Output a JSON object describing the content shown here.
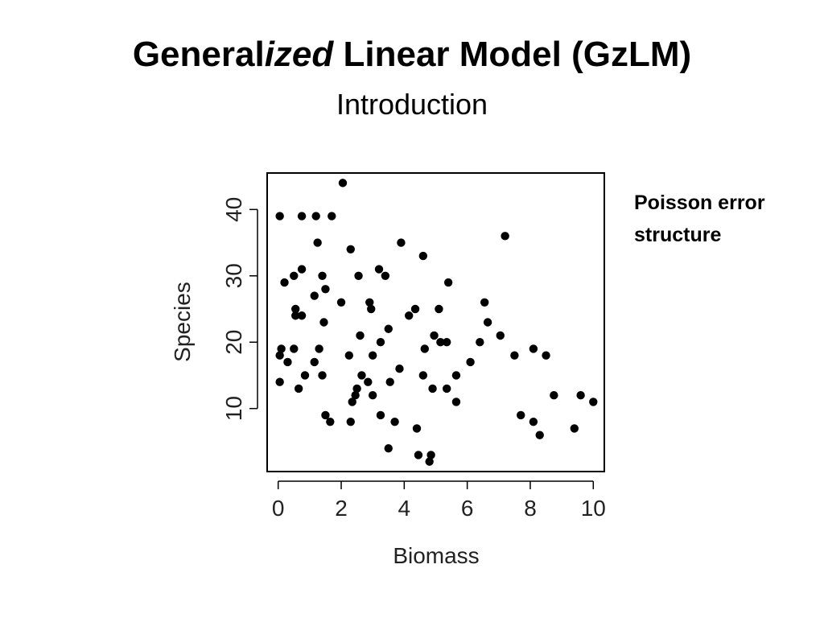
{
  "slide": {
    "title_part1": "General",
    "title_italic": "ized",
    "title_part2": " Linear Model (GzLM)",
    "subtitle": "Introduction",
    "note": "Poisson error structure"
  },
  "chart_data": {
    "type": "scatter",
    "title": "",
    "xlabel": "Biomass",
    "ylabel": "Species",
    "xlim": [
      -0.35,
      10.35
    ],
    "ylim": [
      0.5,
      45.5
    ],
    "xticks": [
      0,
      2,
      4,
      6,
      8,
      10
    ],
    "yticks": [
      10,
      20,
      30,
      40
    ],
    "grid": false,
    "legend": "none",
    "point_color": "#000000",
    "points": [
      {
        "x": 2.05,
        "y": 44
      },
      {
        "x": 0.05,
        "y": 39
      },
      {
        "x": 0.75,
        "y": 39
      },
      {
        "x": 1.2,
        "y": 39
      },
      {
        "x": 1.7,
        "y": 39
      },
      {
        "x": 7.2,
        "y": 36
      },
      {
        "x": 1.25,
        "y": 35
      },
      {
        "x": 3.9,
        "y": 35
      },
      {
        "x": 2.3,
        "y": 34
      },
      {
        "x": 4.6,
        "y": 33
      },
      {
        "x": 0.75,
        "y": 31
      },
      {
        "x": 3.2,
        "y": 31
      },
      {
        "x": 0.5,
        "y": 30
      },
      {
        "x": 1.4,
        "y": 30
      },
      {
        "x": 2.55,
        "y": 30
      },
      {
        "x": 3.4,
        "y": 30
      },
      {
        "x": 0.2,
        "y": 29
      },
      {
        "x": 5.4,
        "y": 29
      },
      {
        "x": 1.5,
        "y": 28
      },
      {
        "x": 1.15,
        "y": 27
      },
      {
        "x": 2.0,
        "y": 26
      },
      {
        "x": 2.9,
        "y": 26
      },
      {
        "x": 6.55,
        "y": 26
      },
      {
        "x": 0.55,
        "y": 25
      },
      {
        "x": 2.95,
        "y": 25
      },
      {
        "x": 4.35,
        "y": 25
      },
      {
        "x": 5.1,
        "y": 25
      },
      {
        "x": 0.55,
        "y": 24
      },
      {
        "x": 0.75,
        "y": 24
      },
      {
        "x": 4.15,
        "y": 24
      },
      {
        "x": 1.45,
        "y": 23
      },
      {
        "x": 6.65,
        "y": 23
      },
      {
        "x": 3.5,
        "y": 22
      },
      {
        "x": 2.6,
        "y": 21
      },
      {
        "x": 4.95,
        "y": 21
      },
      {
        "x": 7.05,
        "y": 21
      },
      {
        "x": 3.25,
        "y": 20
      },
      {
        "x": 5.15,
        "y": 20
      },
      {
        "x": 5.35,
        "y": 20
      },
      {
        "x": 6.4,
        "y": 20
      },
      {
        "x": 0.1,
        "y": 19
      },
      {
        "x": 0.5,
        "y": 19
      },
      {
        "x": 1.3,
        "y": 19
      },
      {
        "x": 4.65,
        "y": 19
      },
      {
        "x": 8.1,
        "y": 19
      },
      {
        "x": 0.05,
        "y": 18
      },
      {
        "x": 2.25,
        "y": 18
      },
      {
        "x": 3.0,
        "y": 18
      },
      {
        "x": 7.5,
        "y": 18
      },
      {
        "x": 8.5,
        "y": 18
      },
      {
        "x": 0.3,
        "y": 17
      },
      {
        "x": 1.15,
        "y": 17
      },
      {
        "x": 6.1,
        "y": 17
      },
      {
        "x": 3.85,
        "y": 16
      },
      {
        "x": 0.85,
        "y": 15
      },
      {
        "x": 1.4,
        "y": 15
      },
      {
        "x": 2.65,
        "y": 15
      },
      {
        "x": 4.6,
        "y": 15
      },
      {
        "x": 5.65,
        "y": 15
      },
      {
        "x": 0.05,
        "y": 14
      },
      {
        "x": 2.85,
        "y": 14
      },
      {
        "x": 3.55,
        "y": 14
      },
      {
        "x": 0.65,
        "y": 13
      },
      {
        "x": 2.5,
        "y": 13
      },
      {
        "x": 4.9,
        "y": 13
      },
      {
        "x": 5.35,
        "y": 13
      },
      {
        "x": 2.45,
        "y": 12
      },
      {
        "x": 3.0,
        "y": 12
      },
      {
        "x": 8.75,
        "y": 12
      },
      {
        "x": 9.6,
        "y": 12
      },
      {
        "x": 2.35,
        "y": 11
      },
      {
        "x": 5.65,
        "y": 11
      },
      {
        "x": 10.0,
        "y": 11
      },
      {
        "x": 1.5,
        "y": 9
      },
      {
        "x": 3.25,
        "y": 9
      },
      {
        "x": 7.7,
        "y": 9
      },
      {
        "x": 1.65,
        "y": 8
      },
      {
        "x": 2.3,
        "y": 8
      },
      {
        "x": 3.7,
        "y": 8
      },
      {
        "x": 8.1,
        "y": 8
      },
      {
        "x": 4.4,
        "y": 7
      },
      {
        "x": 9.4,
        "y": 7
      },
      {
        "x": 8.3,
        "y": 6
      },
      {
        "x": 3.5,
        "y": 4
      },
      {
        "x": 4.45,
        "y": 3
      },
      {
        "x": 4.85,
        "y": 3
      },
      {
        "x": 4.8,
        "y": 2
      }
    ]
  }
}
